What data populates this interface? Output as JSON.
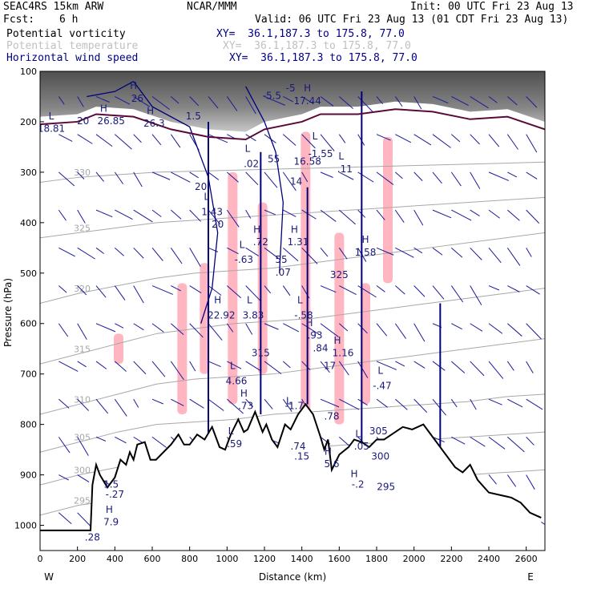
{
  "header": {
    "model": "SEAC4RS 15km ARW",
    "fcst_label": "Fcst:",
    "fcst_value": "6 h",
    "org": "NCAR/MMM",
    "init": "Init: 00 UTC Fri 23 Aug 13",
    "valid": "Valid: 06 UTC Fri 23 Aug 13 (01 CDT Fri 23 Aug 13)",
    "fields": [
      {
        "name": "Potential vorticity",
        "xy": "XY=  36.1,187.3 to 175.8, 77.0",
        "color": "#000000",
        "xy_color": "#000080"
      },
      {
        "name": "Potential temperature",
        "xy": "XY=  36.1,187.3 to 175.8, 77.0",
        "color": "#c0c0c0",
        "xy_color": "#c0c0c0"
      },
      {
        "name": "Horizontal wind speed",
        "xy": "XY=  36.1,187.3 to 175.8, 77.0",
        "color": "#000080",
        "xy_color": "#000080"
      }
    ]
  },
  "chart_data": {
    "type": "cross-section",
    "xlabel": "Distance (km)",
    "ylabel": "Pressure (hPa)",
    "xlim": [
      0,
      2700
    ],
    "ylim": [
      1050,
      100
    ],
    "x_ticks": [
      0,
      200,
      400,
      600,
      800,
      1000,
      1200,
      1400,
      1600,
      1800,
      2000,
      2200,
      2400,
      2600
    ],
    "y_ticks": [
      100,
      200,
      300,
      400,
      500,
      600,
      700,
      800,
      900,
      1000
    ],
    "x_end_labels": {
      "left": "W",
      "right": "E"
    },
    "colors": {
      "terrain": "#000000",
      "pv_contour": "#5a0a3a",
      "pv_shading": "#ffb6c1",
      "theta": "#a8a8a8",
      "wind_speed": "#00007a",
      "wind_vectors": "#1a1a9a",
      "tropo_fill": "#555555"
    },
    "terrain": [
      [
        0,
        1010
      ],
      [
        270,
        1010
      ],
      [
        280,
        920
      ],
      [
        300,
        880
      ],
      [
        320,
        900
      ],
      [
        360,
        925
      ],
      [
        400,
        905
      ],
      [
        430,
        870
      ],
      [
        460,
        880
      ],
      [
        480,
        855
      ],
      [
        500,
        870
      ],
      [
        520,
        840
      ],
      [
        560,
        835
      ],
      [
        590,
        870
      ],
      [
        620,
        870
      ],
      [
        660,
        855
      ],
      [
        700,
        840
      ],
      [
        740,
        820
      ],
      [
        770,
        840
      ],
      [
        800,
        840
      ],
      [
        840,
        820
      ],
      [
        880,
        830
      ],
      [
        920,
        805
      ],
      [
        960,
        845
      ],
      [
        990,
        850
      ],
      [
        1020,
        820
      ],
      [
        1060,
        790
      ],
      [
        1090,
        815
      ],
      [
        1110,
        810
      ],
      [
        1150,
        775
      ],
      [
        1190,
        815
      ],
      [
        1210,
        800
      ],
      [
        1240,
        830
      ],
      [
        1270,
        845
      ],
      [
        1310,
        800
      ],
      [
        1340,
        810
      ],
      [
        1380,
        780
      ],
      [
        1420,
        760
      ],
      [
        1460,
        780
      ],
      [
        1500,
        825
      ],
      [
        1520,
        850
      ],
      [
        1540,
        830
      ],
      [
        1560,
        890
      ],
      [
        1600,
        860
      ],
      [
        1650,
        845
      ],
      [
        1680,
        830
      ],
      [
        1720,
        835
      ],
      [
        1760,
        845
      ],
      [
        1800,
        830
      ],
      [
        1840,
        830
      ],
      [
        1880,
        820
      ],
      [
        1940,
        805
      ],
      [
        1990,
        810
      ],
      [
        2050,
        800
      ],
      [
        2090,
        820
      ],
      [
        2130,
        840
      ],
      [
        2170,
        860
      ],
      [
        2220,
        885
      ],
      [
        2260,
        895
      ],
      [
        2300,
        880
      ],
      [
        2340,
        910
      ],
      [
        2400,
        935
      ],
      [
        2460,
        940
      ],
      [
        2520,
        945
      ],
      [
        2570,
        955
      ],
      [
        2620,
        975
      ],
      [
        2680,
        985
      ]
    ],
    "theta_levels": [
      {
        "label": "295",
        "p": [
          980,
          960,
          950,
          940,
          935,
          930,
          925,
          920,
          915,
          910,
          905,
          900,
          895,
          890
        ]
      },
      {
        "label": "300",
        "p": [
          920,
          900,
          885,
          870,
          860,
          855,
          850,
          845,
          840,
          835,
          830,
          825,
          820,
          815
        ]
      },
      {
        "label": "305",
        "p": [
          855,
          835,
          815,
          800,
          795,
          790,
          780,
          775,
          770,
          765,
          760,
          755,
          745,
          740
        ]
      },
      {
        "label": "310",
        "p": [
          780,
          760,
          740,
          720,
          710,
          705,
          700,
          690,
          680,
          670,
          660,
          650,
          640,
          630
        ]
      },
      {
        "label": "315",
        "p": [
          680,
          660,
          640,
          620,
          610,
          600,
          595,
          590,
          580,
          570,
          560,
          550,
          540,
          530
        ]
      },
      {
        "label": "320",
        "p": [
          560,
          540,
          525,
          510,
          500,
          495,
          490,
          480,
          470,
          460,
          450,
          440,
          430,
          420
        ]
      },
      {
        "label": "325",
        "p": [
          430,
          420,
          410,
          400,
          395,
          390,
          385,
          380,
          375,
          370,
          365,
          360,
          355,
          350
        ]
      },
      {
        "label": "330",
        "p": [
          320,
          310,
          305,
          300,
          298,
          296,
          294,
          292,
          290,
          288,
          286,
          284,
          282,
          280
        ]
      }
    ],
    "annotations": [
      {
        "x": 60,
        "p": 195,
        "text": "L"
      },
      {
        "x": 60,
        "p": 220,
        "text": "18.81"
      },
      {
        "x": 230,
        "p": 205,
        "text": "20"
      },
      {
        "x": 340,
        "p": 180,
        "text": "H"
      },
      {
        "x": 380,
        "p": 205,
        "text": "26.85"
      },
      {
        "x": 500,
        "p": 135,
        "text": "H"
      },
      {
        "x": 520,
        "p": 160,
        "text": "26"
      },
      {
        "x": 590,
        "p": 185,
        "text": "H"
      },
      {
        "x": 610,
        "p": 210,
        "text": "26.3"
      },
      {
        "x": 820,
        "p": 195,
        "text": "1.5"
      },
      {
        "x": 1240,
        "p": 155,
        "text": "-5.5"
      },
      {
        "x": 1340,
        "p": 140,
        "text": "-5"
      },
      {
        "x": 1430,
        "p": 140,
        "text": "H"
      },
      {
        "x": 1430,
        "p": 165,
        "text": "17.44"
      },
      {
        "x": 1250,
        "p": 280,
        "text": "55"
      },
      {
        "x": 1430,
        "p": 285,
        "text": "16.58"
      },
      {
        "x": 1470,
        "p": 235,
        "text": "L"
      },
      {
        "x": 1500,
        "p": 270,
        "text": "-1.55"
      },
      {
        "x": 1370,
        "p": 325,
        "text": "14"
      },
      {
        "x": 1610,
        "p": 275,
        "text": "L"
      },
      {
        "x": 1630,
        "p": 300,
        "text": ".11"
      },
      {
        "x": 1110,
        "p": 260,
        "text": "L"
      },
      {
        "x": 1130,
        "p": 290,
        "text": ".02"
      },
      {
        "x": 860,
        "p": 335,
        "text": "20"
      },
      {
        "x": 890,
        "p": 355,
        "text": "L"
      },
      {
        "x": 920,
        "p": 385,
        "text": "1.43"
      },
      {
        "x": 950,
        "p": 410,
        "text": "20"
      },
      {
        "x": 1160,
        "p": 420,
        "text": "H"
      },
      {
        "x": 1180,
        "p": 445,
        "text": ".72"
      },
      {
        "x": 1080,
        "p": 450,
        "text": "L"
      },
      {
        "x": 1090,
        "p": 480,
        "text": "-.63"
      },
      {
        "x": 1360,
        "p": 420,
        "text": "H"
      },
      {
        "x": 1380,
        "p": 445,
        "text": "1.31"
      },
      {
        "x": 1290,
        "p": 480,
        "text": "55"
      },
      {
        "x": 1300,
        "p": 505,
        "text": ".07"
      },
      {
        "x": 1600,
        "p": 510,
        "text": "325"
      },
      {
        "x": 1740,
        "p": 440,
        "text": "H"
      },
      {
        "x": 1740,
        "p": 465,
        "text": "1.58"
      },
      {
        "x": 950,
        "p": 560,
        "text": "H"
      },
      {
        "x": 970,
        "p": 590,
        "text": "22.92"
      },
      {
        "x": 1120,
        "p": 560,
        "text": "L"
      },
      {
        "x": 1140,
        "p": 590,
        "text": "3.83"
      },
      {
        "x": 1180,
        "p": 665,
        "text": "315"
      },
      {
        "x": 1390,
        "p": 560,
        "text": "L"
      },
      {
        "x": 1410,
        "p": 590,
        "text": "-.58"
      },
      {
        "x": 1440,
        "p": 605,
        "text": "H"
      },
      {
        "x": 1470,
        "p": 630,
        "text": ".93"
      },
      {
        "x": 1500,
        "p": 655,
        "text": ".84"
      },
      {
        "x": 1590,
        "p": 640,
        "text": "H"
      },
      {
        "x": 1620,
        "p": 665,
        "text": "1.16"
      },
      {
        "x": 1030,
        "p": 690,
        "text": "L"
      },
      {
        "x": 1050,
        "p": 720,
        "text": "4.66"
      },
      {
        "x": 1550,
        "p": 690,
        "text": "17"
      },
      {
        "x": 1820,
        "p": 700,
        "text": "L"
      },
      {
        "x": 1830,
        "p": 730,
        "text": "-.47"
      },
      {
        "x": 1090,
        "p": 745,
        "text": "H"
      },
      {
        "x": 1100,
        "p": 770,
        "text": ".73"
      },
      {
        "x": 1330,
        "p": 760,
        "text": "L"
      },
      {
        "x": 1360,
        "p": 770,
        "text": "-1.7"
      },
      {
        "x": 1560,
        "p": 790,
        "text": ".78"
      },
      {
        "x": 1810,
        "p": 820,
        "text": "305"
      },
      {
        "x": 1020,
        "p": 820,
        "text": "L"
      },
      {
        "x": 1040,
        "p": 845,
        "text": ".59"
      },
      {
        "x": 1700,
        "p": 825,
        "text": "L"
      },
      {
        "x": 1720,
        "p": 850,
        "text": ".05"
      },
      {
        "x": 1380,
        "p": 850,
        "text": ".74"
      },
      {
        "x": 1400,
        "p": 870,
        "text": ".15"
      },
      {
        "x": 1540,
        "p": 860,
        "text": "H"
      },
      {
        "x": 1560,
        "p": 885,
        "text": "5.6"
      },
      {
        "x": 1820,
        "p": 870,
        "text": "300"
      },
      {
        "x": 1680,
        "p": 905,
        "text": "H"
      },
      {
        "x": 1700,
        "p": 925,
        "text": "-.2"
      },
      {
        "x": 380,
        "p": 925,
        "text": "1.5"
      },
      {
        "x": 400,
        "p": 945,
        "text": "-.27"
      },
      {
        "x": 1850,
        "p": 930,
        "text": "295"
      },
      {
        "x": 370,
        "p": 975,
        "text": "H"
      },
      {
        "x": 380,
        "p": 1000,
        "text": "7.9"
      },
      {
        "x": 280,
        "p": 1030,
        "text": ".28"
      }
    ]
  }
}
